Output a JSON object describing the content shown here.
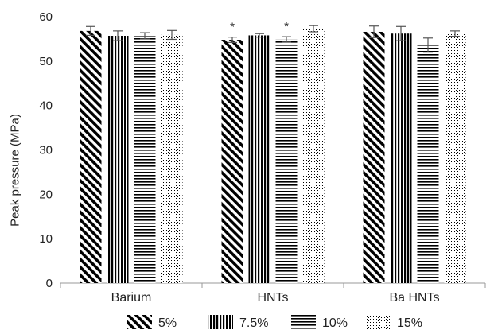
{
  "chart_data": {
    "type": "bar",
    "categories": [
      "Barium",
      "HNTs",
      "Ba HNTs"
    ],
    "series": [
      {
        "name": "5%",
        "pattern": "diagonal",
        "values": [
          56.8,
          54.8,
          56.6
        ],
        "errors": [
          1.0,
          0.6,
          1.3
        ]
      },
      {
        "name": "7.5%",
        "pattern": "vertical",
        "values": [
          55.7,
          55.8,
          56.2
        ],
        "errors": [
          1.1,
          0.4,
          1.6
        ]
      },
      {
        "name": "10%",
        "pattern": "horizontal",
        "values": [
          55.7,
          54.9,
          53.6
        ],
        "errors": [
          0.7,
          0.6,
          1.6
        ]
      },
      {
        "name": "15%",
        "pattern": "dotted",
        "values": [
          55.9,
          57.3,
          56.2
        ],
        "errors": [
          1.0,
          0.7,
          0.6
        ]
      }
    ],
    "annotations": [
      {
        "category": "HNTs",
        "series": "5%",
        "text": "*"
      },
      {
        "category": "HNTs",
        "series": "10%",
        "text": "*"
      }
    ],
    "title": "",
    "xlabel": "",
    "ylabel": "Peak pressure (MPa)",
    "ylim": [
      0,
      60
    ],
    "yticks": [
      0,
      10,
      20,
      30,
      40,
      50,
      60
    ],
    "grid": false,
    "legend_position": "bottom",
    "colors": {
      "bar_fill": "#000000",
      "axis": "#999999",
      "error_bar": "#555555"
    }
  }
}
